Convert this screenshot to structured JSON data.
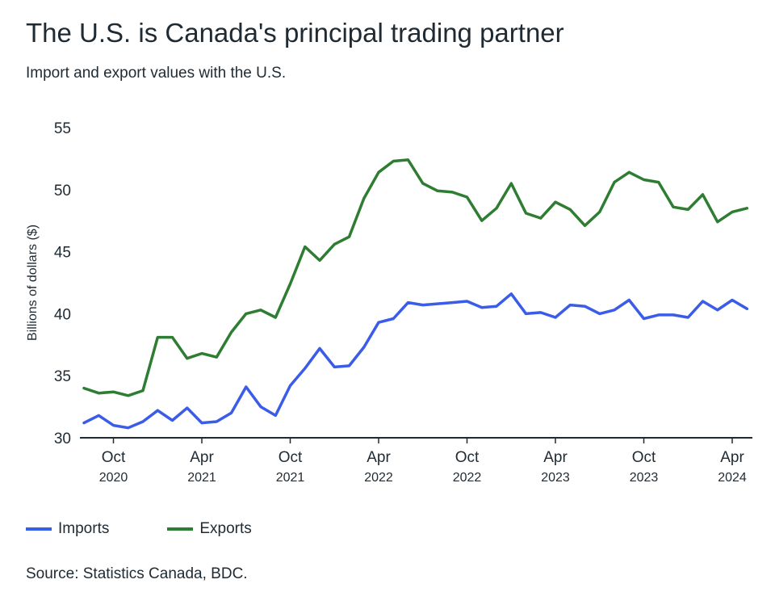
{
  "title": "The U.S. is Canada's principal trading partner",
  "subtitle": "Import and export values with the U.S.",
  "source": "Source: Statistics Canada, BDC.",
  "colors": {
    "imports": "#3a5ce8",
    "exports": "#2e7d32",
    "axis": "#1f2a33"
  },
  "chart_data": {
    "type": "line",
    "title": "The U.S. is Canada's principal trading partner",
    "subtitle": "Import and export values with the U.S.",
    "ylabel": "Billions of dollars ($)",
    "xlabel": "",
    "ylim": [
      30,
      55
    ],
    "yticks": [
      30,
      35,
      40,
      45,
      50,
      55
    ],
    "grid": false,
    "legend_position": "bottom-left",
    "x": [
      "2020-08",
      "2020-09",
      "2020-10",
      "2020-11",
      "2020-12",
      "2021-01",
      "2021-02",
      "2021-03",
      "2021-04",
      "2021-05",
      "2021-06",
      "2021-07",
      "2021-08",
      "2021-09",
      "2021-10",
      "2021-11",
      "2021-12",
      "2022-01",
      "2022-02",
      "2022-03",
      "2022-04",
      "2022-05",
      "2022-06",
      "2022-07",
      "2022-08",
      "2022-09",
      "2022-10",
      "2022-11",
      "2022-12",
      "2023-01",
      "2023-02",
      "2023-03",
      "2023-04",
      "2023-05",
      "2023-06",
      "2023-07",
      "2023-08",
      "2023-09",
      "2023-10",
      "2023-11",
      "2023-12",
      "2024-01",
      "2024-02",
      "2024-03",
      "2024-04",
      "2024-05"
    ],
    "xticks": [
      {
        "date": "2020-10",
        "month": "Oct",
        "year": "2020"
      },
      {
        "date": "2021-04",
        "month": "Apr",
        "year": "2021"
      },
      {
        "date": "2021-10",
        "month": "Oct",
        "year": "2021"
      },
      {
        "date": "2022-04",
        "month": "Apr",
        "year": "2022"
      },
      {
        "date": "2022-10",
        "month": "Oct",
        "year": "2022"
      },
      {
        "date": "2023-04",
        "month": "Apr",
        "year": "2023"
      },
      {
        "date": "2023-10",
        "month": "Oct",
        "year": "2023"
      },
      {
        "date": "2024-04",
        "month": "Apr",
        "year": "2024"
      }
    ],
    "series": [
      {
        "name": "Imports",
        "color": "#3a5ce8",
        "values": [
          31.2,
          31.8,
          31.0,
          30.8,
          31.3,
          32.2,
          31.4,
          32.4,
          31.2,
          31.3,
          32.0,
          34.1,
          32.5,
          31.8,
          34.2,
          35.6,
          37.2,
          35.7,
          35.8,
          37.3,
          39.3,
          39.6,
          40.9,
          40.7,
          40.8,
          40.9,
          41.0,
          40.5,
          40.6,
          41.6,
          40.0,
          40.1,
          39.7,
          40.7,
          40.6,
          40.0,
          40.3,
          41.1,
          39.6,
          39.9,
          39.9,
          39.7,
          41.0,
          40.3,
          41.1,
          40.4
        ]
      },
      {
        "name": "Exports",
        "color": "#2e7d32",
        "values": [
          34.0,
          33.6,
          33.7,
          33.4,
          33.8,
          38.1,
          38.1,
          36.4,
          36.8,
          36.5,
          38.5,
          40.0,
          40.3,
          39.7,
          42.4,
          45.4,
          44.3,
          45.6,
          46.2,
          49.3,
          51.4,
          52.3,
          52.4,
          50.5,
          49.9,
          49.8,
          49.4,
          47.5,
          48.5,
          50.5,
          48.1,
          47.7,
          49.0,
          48.4,
          47.1,
          48.2,
          50.6,
          51.4,
          50.8,
          50.6,
          48.6,
          48.4,
          49.6,
          47.4,
          48.2,
          48.5
        ]
      }
    ]
  }
}
